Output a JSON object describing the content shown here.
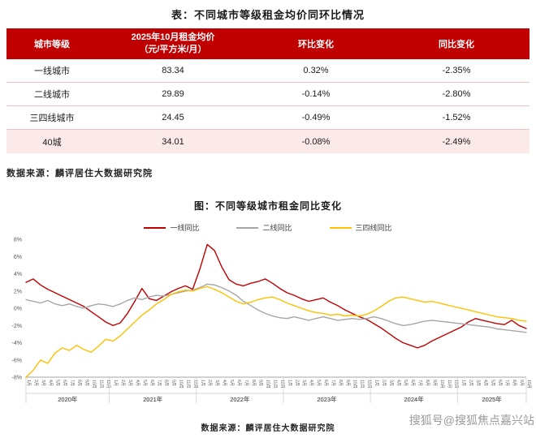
{
  "header": {
    "table_title": "表：不同城市等级租金均价同环比情况"
  },
  "table": {
    "columns": {
      "c1": "城市等级",
      "c2_line1": "2025年10月租金均价",
      "c2_line2": "（元/平方米/月）",
      "c3": "环比变化",
      "c4": "同比变化"
    },
    "rows": [
      {
        "tier": "一线城市",
        "price": "83.34",
        "mom": "0.32%",
        "yoy": "-2.35%"
      },
      {
        "tier": "二线城市",
        "price": "29.89",
        "mom": "-0.14%",
        "yoy": "-2.80%"
      },
      {
        "tier": "三四线城市",
        "price": "24.45",
        "mom": "-0.49%",
        "yoy": "-1.52%"
      },
      {
        "tier": "40城",
        "price": "34.01",
        "mom": "-0.08%",
        "yoy": "-2.49%"
      }
    ],
    "source": "数据来源：麟评居住大数据研究院"
  },
  "chart": {
    "title": "图：不同等级城市租金同比变化",
    "source": "数据来源：麟评居住大数据研究院"
  },
  "watermark": "搜狐号@搜狐焦点嘉兴站",
  "colors": {
    "accent_red": "#C00000",
    "tier1_line": "#C00000",
    "tier2_line": "#A6A6A6",
    "tier34_line": "#FFC000",
    "highlight_row": "#FCE9E9"
  },
  "chart_data": {
    "type": "line",
    "title": "图：不同等级城市租金同比变化",
    "xlabel": "",
    "ylabel": "",
    "ylim": [
      -8,
      8
    ],
    "ytick_values": [
      8,
      6,
      4,
      2,
      0,
      -2,
      -4,
      -6,
      -8
    ],
    "ytick_suffix": "%",
    "grid": false,
    "legend_position": "top",
    "month_label_suffix": "月",
    "years": [
      {
        "label": "2020年",
        "months": 12
      },
      {
        "label": "2021年",
        "months": 12
      },
      {
        "label": "2022年",
        "months": 12
      },
      {
        "label": "2023年",
        "months": 12
      },
      {
        "label": "2024年",
        "months": 12
      },
      {
        "label": "2025年",
        "months": 10
      }
    ],
    "series": [
      {
        "name": "一线同比",
        "color": "#C00000",
        "values": [
          3.0,
          3.4,
          2.7,
          2.2,
          1.8,
          1.4,
          1.0,
          0.6,
          0.2,
          -0.4,
          -1.0,
          -1.6,
          -2.0,
          -1.7,
          -0.6,
          0.8,
          2.3,
          1.1,
          0.9,
          1.4,
          1.9,
          2.3,
          2.6,
          2.2,
          4.6,
          7.4,
          6.7,
          4.8,
          3.3,
          2.8,
          2.6,
          2.9,
          3.1,
          3.4,
          2.9,
          2.3,
          1.8,
          1.5,
          1.1,
          0.8,
          1.0,
          1.2,
          0.7,
          0.3,
          -0.2,
          -0.6,
          -1.0,
          -1.3,
          -1.8,
          -2.3,
          -2.9,
          -3.5,
          -4.0,
          -4.3,
          -4.6,
          -4.3,
          -3.8,
          -3.4,
          -3.0,
          -2.6,
          -2.2,
          -1.6,
          -1.2,
          -1.4,
          -1.6,
          -1.8,
          -1.9,
          -1.4,
          -2.0,
          -2.35
        ]
      },
      {
        "name": "二线同比",
        "color": "#A6A6A6",
        "values": [
          1.0,
          0.8,
          0.6,
          0.9,
          0.5,
          0.3,
          0.5,
          0.2,
          0.0,
          0.3,
          0.5,
          0.4,
          0.2,
          0.5,
          0.9,
          1.2,
          1.0,
          1.3,
          1.5,
          1.4,
          1.6,
          1.8,
          2.0,
          2.1,
          2.4,
          2.8,
          2.7,
          2.4,
          2.0,
          1.5,
          0.8,
          0.3,
          -0.2,
          -0.6,
          -0.9,
          -1.1,
          -1.2,
          -1.0,
          -1.2,
          -1.4,
          -1.2,
          -1.0,
          -1.2,
          -1.4,
          -1.3,
          -1.2,
          -1.3,
          -1.2,
          -1.0,
          -1.2,
          -1.5,
          -1.8,
          -2.0,
          -1.9,
          -1.7,
          -1.5,
          -1.4,
          -1.5,
          -1.6,
          -1.7,
          -1.8,
          -1.9,
          -2.0,
          -2.1,
          -2.2,
          -2.4,
          -2.5,
          -2.6,
          -2.7,
          -2.8
        ]
      },
      {
        "name": "三四线同比",
        "color": "#FFC000",
        "values": [
          -8.0,
          -7.2,
          -6.0,
          -6.4,
          -5.2,
          -4.6,
          -4.9,
          -4.3,
          -4.8,
          -5.1,
          -4.4,
          -3.6,
          -3.8,
          -3.2,
          -2.4,
          -1.6,
          -0.8,
          -0.2,
          0.5,
          1.0,
          1.6,
          1.9,
          2.1,
          2.0,
          2.3,
          2.5,
          2.2,
          1.8,
          1.3,
          0.8,
          0.5,
          0.7,
          1.0,
          1.2,
          1.3,
          1.0,
          0.6,
          0.3,
          0.0,
          -0.3,
          -0.5,
          -0.6,
          -0.8,
          -0.7,
          -0.9,
          -0.8,
          -0.9,
          -0.7,
          -0.3,
          0.2,
          0.8,
          1.2,
          1.3,
          1.1,
          0.9,
          0.7,
          0.8,
          0.6,
          0.4,
          0.2,
          0.0,
          -0.2,
          -0.4,
          -0.6,
          -0.8,
          -1.0,
          -1.1,
          -1.2,
          -1.4,
          -1.52
        ]
      }
    ]
  }
}
